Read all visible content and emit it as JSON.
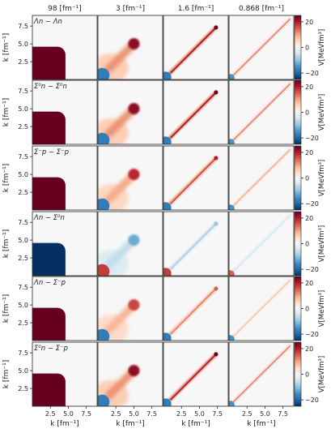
{
  "chart_data": {
    "type": "heatmap",
    "column_titles": [
      "98 [fm$^{-1}$]",
      "3 [fm$^{-1}$]",
      "1.6 [fm$^{-1}$]",
      "0.868 [fm$^{-1}$]"
    ],
    "column_titles_text": [
      "98 [fm⁻¹]",
      "3 [fm⁻¹]",
      "1.6 [fm⁻¹]",
      "0.868 [fm⁻¹]"
    ],
    "row_labels": [
      "Λn − Λn",
      "Σ⁰n − Σ⁰n",
      "Σ⁻p − Σ⁻p",
      "Λn − Σ⁰n",
      "Λn − Σ⁻p",
      "Σ⁰n − Σ⁻p"
    ],
    "xlabel": "k [fm⁻¹]",
    "ylabel": "k [fm⁻¹]",
    "colorbar_label": "V[MeVfm³]",
    "x_ticks": [
      "2.5",
      "5.0",
      "7.5"
    ],
    "y_ticks": [
      "2.5",
      "5.0",
      "7.5"
    ],
    "x_tick_values": [
      2.5,
      5.0,
      7.5
    ],
    "y_tick_values": [
      2.5,
      5.0,
      7.5
    ],
    "colorbar_ticks": [
      "20",
      "0",
      "−20"
    ],
    "colorbar_tick_values": [
      20,
      0,
      -20
    ],
    "xlim": [
      0,
      9
    ],
    "ylim": [
      0,
      9
    ],
    "clim": [
      -25,
      25
    ],
    "colormap": [
      "#053061",
      "#2166ac",
      "#4393c3",
      "#92c5de",
      "#d1e5f0",
      "#f7f7f7",
      "#fddbc7",
      "#f4a582",
      "#d6604d",
      "#b2182b",
      "#67001f"
    ],
    "panel_strengths": [
      [
        1.0,
        1.0,
        1.0,
        0.7
      ],
      [
        1.0,
        1.0,
        1.0,
        0.7
      ],
      [
        1.0,
        0.85,
        0.8,
        0.5
      ],
      [
        -1.0,
        -0.55,
        -0.4,
        -0.25
      ],
      [
        1.0,
        0.75,
        0.6,
        0.4
      ],
      [
        1.0,
        1.0,
        1.0,
        0.7
      ]
    ]
  }
}
